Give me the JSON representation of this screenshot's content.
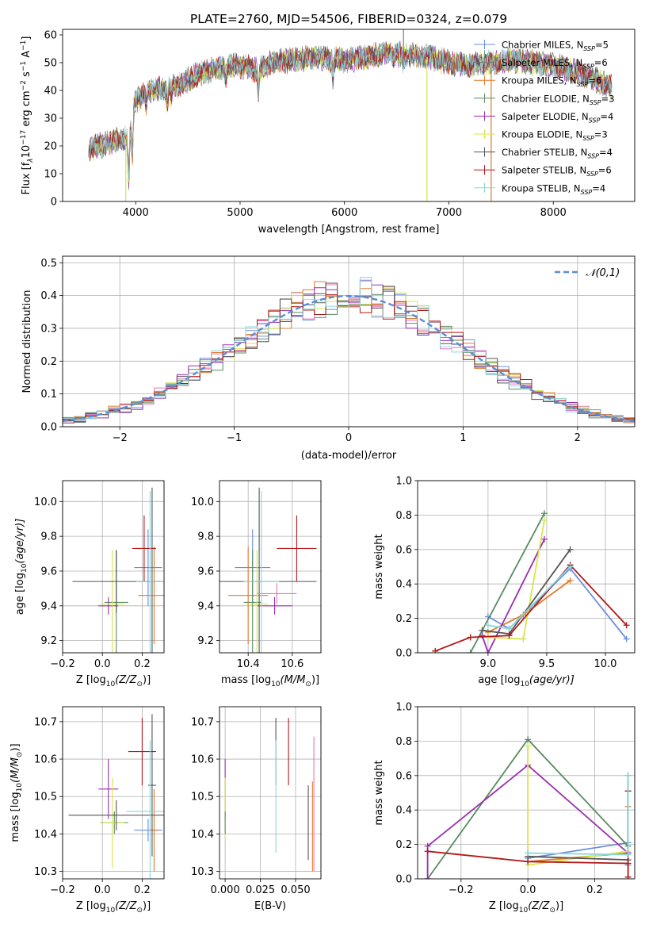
{
  "figure_title": "PLATE=2760, MJD=54506, FIBERID=0324, z=0.079",
  "series_styles": [
    {
      "key": "chabrier_miles",
      "color": "#6a8fdb"
    },
    {
      "key": "salpeter_miles",
      "color": "#7a7a7a"
    },
    {
      "key": "kroupa_miles",
      "color": "#e07b2a"
    },
    {
      "key": "chabrier_elodie",
      "color": "#5b8a62"
    },
    {
      "key": "salpeter_elodie",
      "color": "#9a2fb0"
    },
    {
      "key": "kroupa_elodie",
      "color": "#d6e64a"
    },
    {
      "key": "chabrier_stelib",
      "color": "#555555"
    },
    {
      "key": "salpeter_stelib",
      "color": "#b01818"
    },
    {
      "key": "kroupa_stelib",
      "color": "#8ad6dc"
    }
  ],
  "chart_data": [
    {
      "id": "spectrum",
      "type": "line",
      "title": "PLATE=2760, MJD=54506, FIBERID=0324, z=0.079",
      "xlabel": "wavelength [Angstrom, rest frame]",
      "ylabel": "Flux [f",
      "ylabel_parts": {
        "lambda": "λ",
        "mult": "10",
        "exp1": "−17",
        "unit": " erg cm",
        "exp2": "−2",
        "s": " s",
        "exp3": "−1",
        "ang": " A",
        "exp4": "−1",
        "close": "]"
      },
      "xlim": [
        3300,
        8780
      ],
      "ylim": [
        0,
        62
      ],
      "xticks": [
        4000,
        5000,
        6000,
        7000,
        8000
      ],
      "yticks": [
        0,
        10,
        20,
        30,
        40,
        50,
        60
      ],
      "legend": {
        "placement": "right",
        "entries": [
          {
            "text": "Chabrier MILES, N",
            "sub": "SSP",
            "val": "=5",
            "color": "#6a8fdb"
          },
          {
            "text": "Salpeter MILES, N",
            "sub": "SSP",
            "val": "=6",
            "color": "#7a7a7a"
          },
          {
            "text": "Kroupa MILES, N",
            "sub": "SSP",
            "val": "=6",
            "color": "#e07b2a"
          },
          {
            "text": "Chabrier ELODIE, N",
            "sub": "SSP",
            "val": "=3",
            "color": "#5b8a62"
          },
          {
            "text": "Salpeter ELODIE, N",
            "sub": "SSP",
            "val": "=4",
            "color": "#9a2fb0"
          },
          {
            "text": "Kroupa ELODIE, N",
            "sub": "SSP",
            "val": "=3",
            "color": "#d6e64a"
          },
          {
            "text": "Chabrier STELIB, N",
            "sub": "SSP",
            "val": "=4",
            "color": "#555555"
          },
          {
            "text": "Salpeter STELIB, N",
            "sub": "SSP",
            "val": "=6",
            "color": "#b01818"
          },
          {
            "text": "Kroupa STELIB, N",
            "sub": "SSP",
            "val": "=4",
            "color": "#8ad6dc"
          }
        ]
      },
      "continuum": [
        [
          3550,
          19
        ],
        [
          3650,
          20
        ],
        [
          3750,
          21
        ],
        [
          3850,
          23
        ],
        [
          3930,
          22
        ],
        [
          3990,
          36
        ],
        [
          4150,
          40
        ],
        [
          4300,
          41
        ],
        [
          4400,
          42
        ],
        [
          4600,
          46
        ],
        [
          4800,
          48
        ],
        [
          5000,
          49
        ],
        [
          5170,
          47
        ],
        [
          5300,
          50
        ],
        [
          5500,
          51
        ],
        [
          5700,
          52
        ],
        [
          5900,
          51
        ],
        [
          6000,
          51
        ],
        [
          6200,
          52
        ],
        [
          6400,
          53
        ],
        [
          6600,
          53
        ],
        [
          6800,
          52
        ],
        [
          7000,
          50
        ],
        [
          7200,
          49
        ],
        [
          7400,
          50
        ],
        [
          7600,
          51
        ],
        [
          7800,
          50
        ],
        [
          8000,
          49
        ],
        [
          8200,
          47
        ],
        [
          8400,
          44
        ],
        [
          8550,
          41
        ]
      ],
      "absorption_features": [
        [
          3934,
          15
        ],
        [
          3969,
          14
        ],
        [
          4101,
          4
        ],
        [
          4304,
          6
        ],
        [
          4340,
          4
        ],
        [
          4861,
          4
        ],
        [
          5175,
          8
        ],
        [
          5890,
          6
        ],
        [
          6563,
          3
        ]
      ],
      "spikes": [
        {
          "x": 3905,
          "y": 0,
          "color": "#d6e64a"
        },
        {
          "x": 6790,
          "y": 0,
          "color": "#d6e64a"
        },
        {
          "x": 7405,
          "y": 0,
          "color": "#e07b2a"
        },
        {
          "x": 6565,
          "y": 62,
          "color": "#7a7a7a"
        }
      ]
    },
    {
      "id": "residuals",
      "type": "histogram",
      "xlabel": "(data-model)/error",
      "ylabel": "Normed distribution",
      "xlim": [
        -2.5,
        2.5
      ],
      "ylim": [
        0,
        0.52
      ],
      "xticks": [
        -2,
        -1,
        0,
        1,
        2
      ],
      "yticks": [
        0,
        0.1,
        0.2,
        0.3,
        0.4,
        0.5
      ],
      "grid": true,
      "bin_width": 0.1,
      "reference_curve": {
        "name": "𝒩(0,1)",
        "style": "dashed",
        "color": "#5b8cd6",
        "mean": 0,
        "sigma": 1
      },
      "legend": {
        "placement": "top-right"
      }
    },
    {
      "id": "age_vs_z",
      "type": "errorbar",
      "xlabel": "Z [log",
      "xlabel_parts": {
        "sub": "10",
        "rest": "(Z/Z",
        "sun_sub": "⊙",
        "close": ")]"
      },
      "ylabel": "age  [log",
      "ylabel_parts": {
        "sub": "10",
        "rest": "(age/yr)]"
      },
      "xlim": [
        -0.2,
        0.31
      ],
      "ylim": [
        9.13,
        10.12
      ],
      "xticks": [
        -0.2,
        0.0,
        0.2
      ],
      "yticks": [
        9.2,
        9.4,
        9.6,
        9.8,
        10.0
      ],
      "grid": true,
      "points": [
        {
          "x": 0.23,
          "y": 9.62,
          "xerr": 0.07,
          "yerr": 0.22,
          "color": "#6a8fdb"
        },
        {
          "x": 0.26,
          "y": 9.46,
          "xerr": 0.08,
          "yerr": 0.28,
          "color": "#e07b2a"
        },
        {
          "x": 0.07,
          "y": 9.42,
          "xerr": 0.06,
          "yerr": 0.3,
          "color": "#5b8a62"
        },
        {
          "x": 0.03,
          "y": 9.4,
          "xerr": 0.05,
          "yerr": 0.05,
          "color": "#9a2fb0"
        },
        {
          "x": 0.05,
          "y": 9.41,
          "xerr": 0.06,
          "yerr": 0.31,
          "color": "#d6e64a"
        },
        {
          "x": 0.07,
          "y": 9.54,
          "xerr": 0.22,
          "yerr": 0.18,
          "color": "#555555"
        },
        {
          "x": 0.25,
          "y": 9.54,
          "xerr": 0.08,
          "yerr": 0.54,
          "color": "#555555"
        },
        {
          "x": 0.21,
          "y": 9.73,
          "xerr": 0.06,
          "yerr": 0.19,
          "color": "#b01818"
        },
        {
          "x": 0.24,
          "y": 9.54,
          "xerr": 0.07,
          "yerr": 0.52,
          "color": "#8ad6dc"
        }
      ]
    },
    {
      "id": "age_vs_mass",
      "type": "errorbar",
      "xlabel": "mass [log",
      "xlabel_parts": {
        "sub": "10",
        "rest": "(M/M",
        "sun_sub": "⊙",
        "close": ")]"
      },
      "xlim": [
        10.27,
        10.73
      ],
      "ylim": [
        9.13,
        10.12
      ],
      "xticks": [
        10.4,
        10.6
      ],
      "yticks": [
        9.2,
        9.4,
        9.6,
        9.8,
        10.0
      ],
      "grid": true,
      "points": [
        {
          "x": 10.42,
          "y": 9.62,
          "xerr": 0.08,
          "yerr": 0.22,
          "color": "#6a8fdb"
        },
        {
          "x": 10.4,
          "y": 9.46,
          "xerr": 0.09,
          "yerr": 0.28,
          "color": "#e07b2a"
        },
        {
          "x": 10.42,
          "y": 9.42,
          "xerr": 0.04,
          "yerr": 0.3,
          "color": "#5b8a62"
        },
        {
          "x": 10.52,
          "y": 9.4,
          "xerr": 0.08,
          "yerr": 0.05,
          "color": "#9a2fb0"
        },
        {
          "x": 10.44,
          "y": 9.41,
          "xerr": 0.05,
          "yerr": 0.31,
          "color": "#d6e64a"
        },
        {
          "x": 10.45,
          "y": 9.54,
          "xerr": 0.26,
          "yerr": 0.54,
          "color": "#555555"
        },
        {
          "x": 10.62,
          "y": 9.73,
          "xerr": 0.09,
          "yerr": 0.19,
          "color": "#b01818"
        },
        {
          "x": 10.53,
          "y": 9.47,
          "xerr": 0.09,
          "yerr": 0.06,
          "color": "#e377c2"
        },
        {
          "x": 10.46,
          "y": 9.54,
          "xerr": 0.08,
          "yerr": 0.52,
          "color": "#8ad6dc"
        }
      ]
    },
    {
      "id": "mass_weight_vs_age",
      "type": "line",
      "xlabel": "age  [log",
      "xlabel_parts": {
        "sub": "10",
        "rest": "(age/yr)]"
      },
      "ylabel": "mass weight",
      "xlim": [
        8.4,
        10.25
      ],
      "ylim": [
        0,
        1.0
      ],
      "xticks": [
        9.0,
        9.5,
        10.0
      ],
      "yticks": [
        0,
        0.2,
        0.4,
        0.6,
        0.8,
        1.0
      ],
      "grid": true,
      "series": [
        {
          "color": "#6a8fdb",
          "points": [
            [
              9.0,
              0.21
            ],
            [
              9.18,
              0.14
            ],
            [
              9.7,
              0.49
            ],
            [
              10.18,
              0.08
            ]
          ]
        },
        {
          "color": "#e07b2a",
          "points": [
            [
              9.0,
              0.12
            ],
            [
              9.3,
              0.22
            ],
            [
              9.7,
              0.42
            ]
          ]
        },
        {
          "color": "#5b8a62",
          "points": [
            [
              8.85,
              0.0
            ],
            [
              9.48,
              0.81
            ]
          ]
        },
        {
          "color": "#9a2fb0",
          "points": [
            [
              8.95,
              0.1
            ],
            [
              9.0,
              0.0
            ],
            [
              9.48,
              0.66
            ]
          ]
        },
        {
          "color": "#d6e64a",
          "points": [
            [
              9.0,
              0.09
            ],
            [
              9.3,
              0.08
            ],
            [
              9.48,
              0.77
            ]
          ]
        },
        {
          "color": "#555555",
          "points": [
            [
              8.95,
              0.13
            ],
            [
              9.18,
              0.11
            ],
            [
              9.7,
              0.6
            ]
          ]
        },
        {
          "color": "#b01818",
          "points": [
            [
              8.55,
              0.01
            ],
            [
              8.85,
              0.09
            ],
            [
              9.18,
              0.1
            ],
            [
              9.7,
              0.51
            ],
            [
              10.18,
              0.16
            ]
          ]
        },
        {
          "color": "#8ad6dc",
          "points": [
            [
              9.0,
              0.16
            ],
            [
              9.18,
              0.14
            ],
            [
              9.7,
              0.5
            ]
          ]
        }
      ]
    },
    {
      "id": "mass_vs_z",
      "type": "errorbar",
      "xlabel": "Z [log",
      "xlabel_parts": {
        "sub": "10",
        "rest": "(Z/Z",
        "sun_sub": "⊙",
        "close": ")]"
      },
      "ylabel": "mass [log",
      "ylabel_parts": {
        "sub": "10",
        "rest": "(M/M",
        "sun_sub": "⊙",
        "close": ")]"
      },
      "xlim": [
        -0.2,
        0.31
      ],
      "ylim": [
        10.28,
        10.74
      ],
      "xticks": [
        -0.2,
        0.0,
        0.2
      ],
      "yticks": [
        10.3,
        10.4,
        10.5,
        10.6,
        10.7
      ],
      "grid": true,
      "points": [
        {
          "x": 0.23,
          "y": 10.41,
          "xerr": 0.07,
          "yerr": 0.03,
          "color": "#6a8fdb"
        },
        {
          "x": 0.26,
          "y": 10.41,
          "xerr": 0.02,
          "yerr": 0.11,
          "color": "#e07b2a"
        },
        {
          "x": 0.06,
          "y": 10.43,
          "xerr": 0.07,
          "yerr": 0.03,
          "color": "#5b8a62"
        },
        {
          "x": 0.03,
          "y": 10.52,
          "xerr": 0.05,
          "yerr": 0.08,
          "color": "#9a2fb0"
        },
        {
          "x": 0.05,
          "y": 10.43,
          "xerr": 0.06,
          "yerr": 0.12,
          "color": "#d6e64a"
        },
        {
          "x": 0.07,
          "y": 10.45,
          "xerr": 0.24,
          "yerr": 0.04,
          "color": "#555555"
        },
        {
          "x": 0.25,
          "y": 10.53,
          "xerr": 0.02,
          "yerr": 0.19,
          "color": "#555555"
        },
        {
          "x": 0.2,
          "y": 10.62,
          "xerr": 0.07,
          "yerr": 0.09,
          "color": "#b01818"
        },
        {
          "x": 0.24,
          "y": 10.46,
          "xerr": 0.12,
          "yerr": 0.19,
          "color": "#8ad6dc"
        }
      ]
    },
    {
      "id": "mass_vs_ebv",
      "type": "errorbar",
      "xlabel": "E(B-V)",
      "xlim": [
        -0.004,
        0.068
      ],
      "ylim": [
        10.28,
        10.74
      ],
      "xticks": [
        0.0,
        0.025,
        0.05
      ],
      "xtick_labels": [
        "0.000",
        "0.025",
        "0.050"
      ],
      "yticks": [
        10.3,
        10.4,
        10.5,
        10.6,
        10.7
      ],
      "grid": true,
      "points": [
        {
          "x": 0.0,
          "y": 10.52,
          "yerr": 0.08,
          "color": "#9a2fb0"
        },
        {
          "x": 0.0,
          "y": 10.47,
          "yerr": 0.08,
          "color": "#d6e64a"
        },
        {
          "x": 0.0,
          "y": 10.43,
          "yerr": 0.03,
          "color": "#5b8a62"
        },
        {
          "x": 0.036,
          "y": 10.62,
          "yerr": 0.09,
          "color": "#555555"
        },
        {
          "x": 0.036,
          "y": 10.5,
          "yerr": 0.15,
          "color": "#8ad6dc"
        },
        {
          "x": 0.045,
          "y": 10.62,
          "yerr": 0.09,
          "color": "#b01818"
        },
        {
          "x": 0.059,
          "y": 10.43,
          "yerr": 0.1,
          "color": "#555555"
        },
        {
          "x": 0.062,
          "y": 10.42,
          "yerr": 0.12,
          "color": "#e07b2a"
        },
        {
          "x": 0.063,
          "y": 10.48,
          "yerr": 0.18,
          "color": "#e377c2"
        }
      ]
    },
    {
      "id": "mass_weight_vs_z",
      "type": "line",
      "xlabel": "Z [log",
      "xlabel_parts": {
        "sub": "10",
        "rest": "(Z/Z",
        "sun_sub": "⊙",
        "close": ")]"
      },
      "ylabel": "mass weight",
      "xlim": [
        -0.33,
        0.32
      ],
      "ylim": [
        0,
        1.0
      ],
      "xticks": [
        -0.2,
        0.0,
        0.2
      ],
      "yticks": [
        0,
        0.2,
        0.4,
        0.6,
        0.8,
        1.0
      ],
      "grid": true,
      "series": [
        {
          "color": "#6a8fdb",
          "points": [
            [
              0.0,
              0.12
            ],
            [
              0.3,
              0.21
            ],
            [
              0.3,
              0.08
            ]
          ]
        },
        {
          "color": "#e07b2a",
          "points": [
            [
              0.0,
              0.1
            ],
            [
              0.3,
              0.15
            ],
            [
              0.3,
              0.42
            ]
          ]
        },
        {
          "color": "#5b8a62",
          "points": [
            [
              -0.3,
              0.0
            ],
            [
              0.0,
              0.81
            ],
            [
              0.3,
              0.19
            ]
          ]
        },
        {
          "color": "#9a2fb0",
          "points": [
            [
              -0.3,
              0.0
            ],
            [
              -0.3,
              0.19
            ],
            [
              0.0,
              0.66
            ],
            [
              0.3,
              0.15
            ]
          ]
        },
        {
          "color": "#d6e64a",
          "points": [
            [
              0.0,
              0.77
            ],
            [
              0.0,
              0.08
            ],
            [
              0.3,
              0.16
            ]
          ]
        },
        {
          "color": "#555555",
          "points": [
            [
              0.0,
              0.13
            ],
            [
              0.3,
              0.11
            ],
            [
              0.3,
              0.6
            ]
          ]
        },
        {
          "color": "#b01818",
          "points": [
            [
              -0.3,
              0.16
            ],
            [
              0.0,
              0.1
            ],
            [
              0.3,
              0.09
            ],
            [
              0.3,
              0.01
            ],
            [
              0.3,
              0.51
            ]
          ]
        },
        {
          "color": "#8ad6dc",
          "points": [
            [
              0.0,
              0.15
            ],
            [
              0.3,
              0.14
            ],
            [
              0.3,
              0.6
            ]
          ]
        }
      ]
    }
  ]
}
